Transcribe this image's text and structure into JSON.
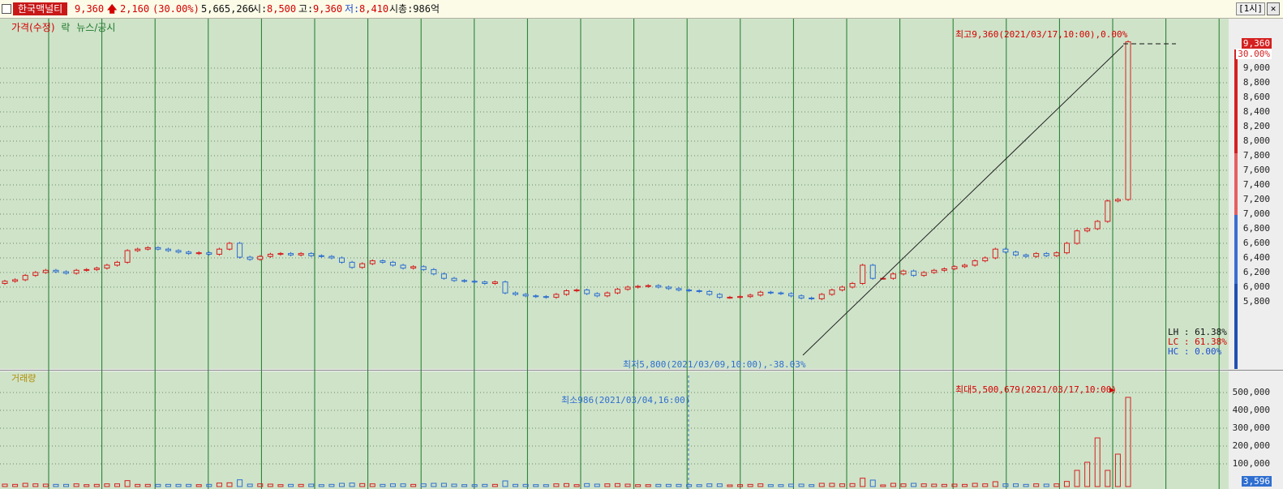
{
  "header": {
    "stock_name": "한국맥널티",
    "price": "9,360",
    "change_arrow": "up-arrow-icon",
    "change": "2,160",
    "change_pct": "(30.00%)",
    "volume": "5,665,266",
    "open_label": "시:",
    "open": "8,500",
    "high_label": "고:",
    "high": "9,360",
    "low_label": "저:",
    "low": "8,410",
    "mcap": "시총:986억",
    "interval": "[1시]",
    "close": "✕"
  },
  "price_panel": {
    "legend": {
      "price": "가격(수정)",
      "rak": "락",
      "news": "뉴스/공시"
    },
    "high_annotation": "최고9,360(2021/03/17,10:00),0.00%",
    "low_annotation": "최저5,800(2021/03/09,10:00),-38.03%",
    "current_price_box": "9,360",
    "current_pct_box": "30.00%",
    "ratios": {
      "lh": "LH : 61.38%",
      "lc": "LC : 61.38%",
      "hc": "HC :  0.00%"
    },
    "y_ticks": [
      "9,000",
      "8,800",
      "8,600",
      "8,400",
      "8,200",
      "8,000",
      "7,800",
      "7,600",
      "7,400",
      "7,200",
      "7,000",
      "6,800",
      "6,600",
      "6,400",
      "6,200",
      "6,000",
      "5,800"
    ]
  },
  "volume_panel": {
    "legend": "거래량",
    "max_annotation": "최대5,500,679(2021/03/17,10:00)",
    "min_annotation": "최소986(2021/03/04,16:00)",
    "current_box": "3,596",
    "y_ticks": [
      "500,000",
      "400,000",
      "300,000",
      "200,000",
      "100,000"
    ]
  },
  "colors": {
    "bg": "#cfe3c9",
    "up": "#d42020",
    "down": "#2f6fd0",
    "vgrid": "#1d7a2a"
  },
  "chart_data": {
    "type": "candlestick",
    "closes": [
      6080,
      6100,
      6160,
      6200,
      6230,
      6210,
      6190,
      6230,
      6240,
      6260,
      6300,
      6340,
      6500,
      6520,
      6540,
      6520,
      6500,
      6480,
      6460,
      6470,
      6450,
      6520,
      6600,
      6410,
      6380,
      6420,
      6450,
      6460,
      6440,
      6460,
      6430,
      6420,
      6400,
      6340,
      6270,
      6320,
      6360,
      6340,
      6300,
      6260,
      6280,
      6240,
      6180,
      6120,
      6090,
      6080,
      6070,
      6050,
      6070,
      5920,
      5900,
      5880,
      5870,
      5860,
      5900,
      5950,
      5960,
      5910,
      5880,
      5920,
      5970,
      6000,
      6010,
      6020,
      6000,
      5980,
      5960,
      5950,
      5940,
      5900,
      5860,
      5860,
      5870,
      5890,
      5930,
      5920,
      5910,
      5880,
      5850,
      5840,
      5900,
      5960,
      6000,
      6050,
      6300,
      6120,
      6120,
      6180,
      6220,
      6160,
      6200,
      6230,
      6250,
      6280,
      6300,
      6360,
      6400,
      6520,
      6480,
      6440,
      6420,
      6460,
      6430,
      6470,
      6600,
      6770,
      6800,
      6900,
      7180,
      7200,
      9360
    ]
  }
}
